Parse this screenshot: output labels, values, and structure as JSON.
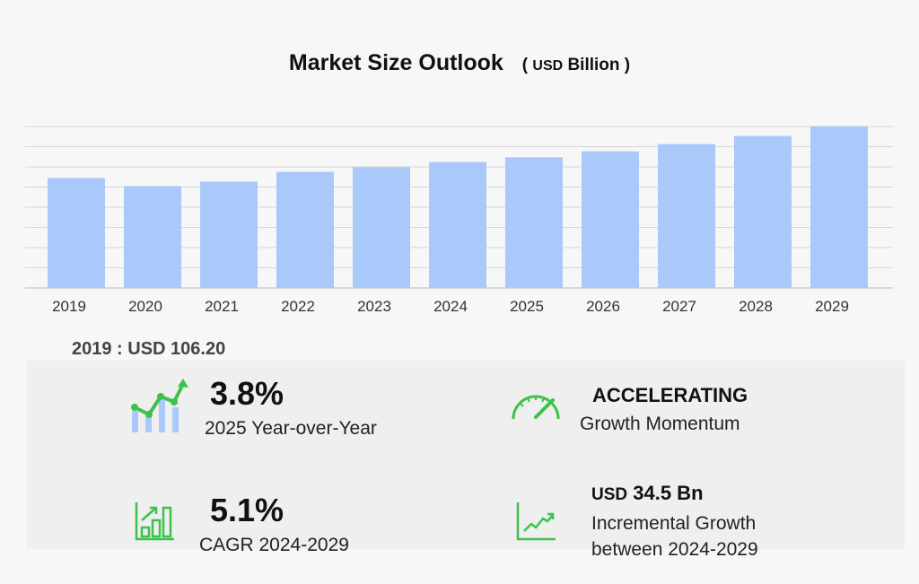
{
  "chart_data": {
    "type": "bar",
    "title": "Market Size Outlook",
    "unit_prefix": "USD",
    "unit": "Billion",
    "categories": [
      "2019",
      "2020",
      "2021",
      "2022",
      "2023",
      "2024",
      "2025",
      "2026",
      "2027",
      "2028",
      "2029"
    ],
    "values": [
      106.2,
      98.4,
      102.7,
      112.2,
      116.6,
      121.7,
      126.3,
      132.0,
      139.0,
      146.8,
      156.2
    ],
    "ylim": [
      0,
      156
    ],
    "grid": true,
    "bar_color": "#a9c9fb"
  },
  "first_value": {
    "label": "2019 : USD  106.20"
  },
  "kpis": {
    "yoy": {
      "value": "3.8%",
      "label": "2025 Year-over-Year"
    },
    "momentum": {
      "value": "ACCELERATING",
      "label": "Growth Momentum"
    },
    "cagr": {
      "value": "5.1%",
      "label": "CAGR 2024-2029"
    },
    "incremental": {
      "prefix": "USD",
      "value": "34.5 Bn",
      "label1": "Incremental Growth",
      "label2": "between 2024-2029"
    }
  },
  "colors": {
    "accent_green": "#3cc24a",
    "bar_blue": "#a9c9fb"
  }
}
